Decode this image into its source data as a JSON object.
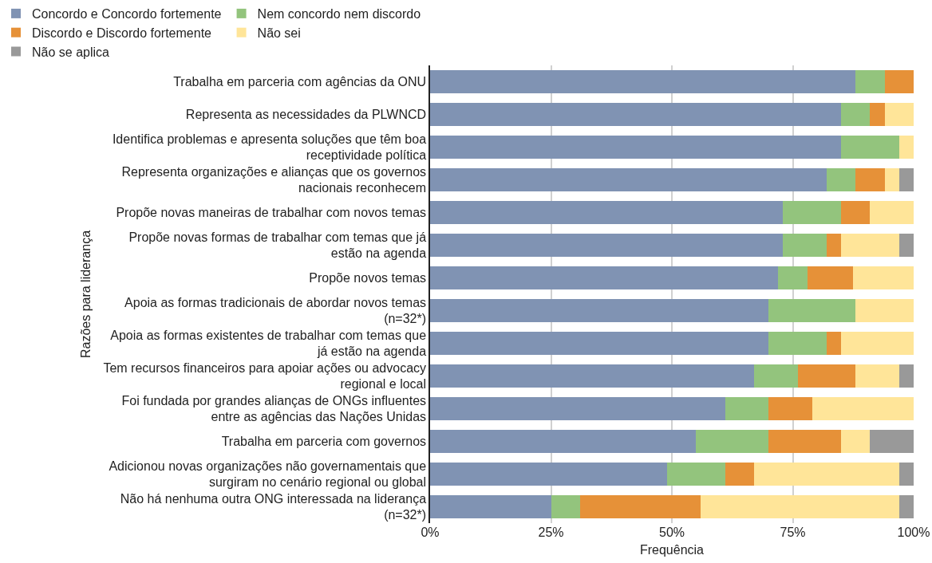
{
  "chart_data": {
    "type": "bar",
    "orientation": "horizontal",
    "stacked": true,
    "xlabel": "Frequência",
    "ylabel": "Razões para liderança",
    "categories": [
      "Trabalha em parceria com agências da ONU",
      "Representa as necessidades da PLWNCD",
      "Identifica problemas e apresenta soluções que têm boa receptividade política",
      "Representa organizações e alianças que os governos nacionais reconhecem",
      "Propõe novas maneiras de trabalhar com novos temas",
      "Propõe novas formas de trabalhar com temas que já estão na agenda",
      "Propõe novos temas",
      "Apoia as formas tradicionais de abordar novos temas (n=32*)",
      "Apoia as formas existentes de trabalhar com temas que já estão na agenda",
      "Tem recursos financeiros para apoiar ações ou advocacy regional e local",
      "Foi fundada por grandes alianças de ONGs influentes entre as agências das Nações Unidas",
      "Trabalha em parceria com governos",
      "Adicionou novas organizações não governamentais que surgiram no cenário regional ou global",
      "Não há nenhuma outra ONG interessada na liderança (n=32*)"
    ],
    "series": [
      {
        "name": "Concordo e Concordo fortemente",
        "color": "#8093b3",
        "values": [
          88,
          85,
          85,
          82,
          73,
          73,
          72,
          70,
          70,
          67,
          61,
          55,
          49,
          25
        ]
      },
      {
        "name": "Nem concordo nem discordo",
        "color": "#93c47d",
        "values": [
          6,
          6,
          12,
          6,
          12,
          9,
          6,
          18,
          12,
          9,
          9,
          15,
          12,
          6
        ]
      },
      {
        "name": "Discordo e Discordo fortemente",
        "color": "#e69138",
        "values": [
          6,
          3,
          0,
          6,
          6,
          3,
          9.5,
          0,
          3,
          12,
          9,
          15,
          6,
          25
        ]
      },
      {
        "name": "Não sei",
        "color": "#ffe599",
        "values": [
          0,
          6,
          3,
          3,
          9,
          12,
          12.5,
          12,
          15,
          9,
          21,
          6,
          30,
          41
        ]
      },
      {
        "name": "Não se aplica",
        "color": "#999999",
        "values": [
          0,
          0,
          0,
          3,
          0,
          3,
          0,
          0,
          0,
          3,
          0,
          9,
          3,
          3
        ]
      }
    ],
    "xlim": [
      0,
      100
    ],
    "xticks": [
      {
        "value": 0,
        "label": "0%"
      },
      {
        "value": 25,
        "label": "25%"
      },
      {
        "value": 50,
        "label": "50%"
      },
      {
        "value": 75,
        "label": "75%"
      },
      {
        "value": 100,
        "label": "100%"
      }
    ],
    "grid": "x",
    "legend": "top"
  }
}
